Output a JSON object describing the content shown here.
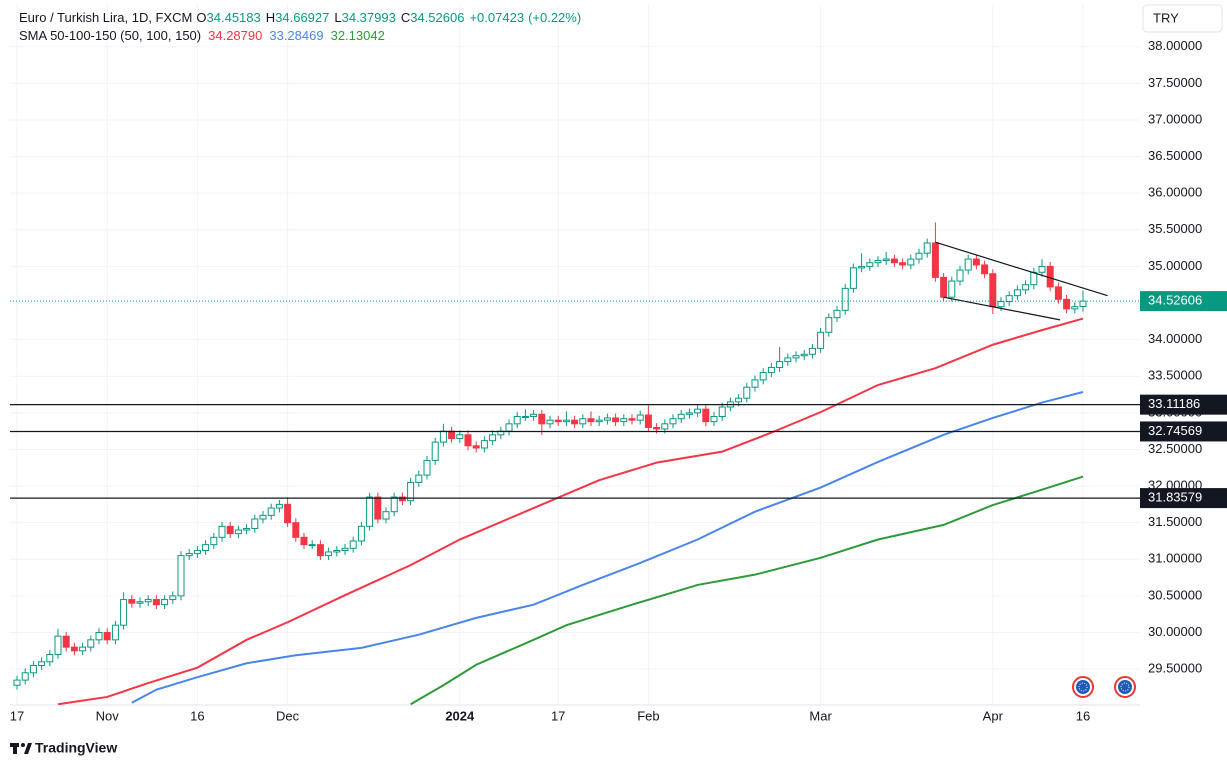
{
  "chart_data": {
    "type": "candlestick",
    "title": "Euro / Turkish Lira, 1D, FXCM",
    "currency": "TRY",
    "ohlc_labels": [
      "O",
      "H",
      "L",
      "C"
    ],
    "change": "+0.07423",
    "change_pct": "(+0.22%)",
    "watermark": "TradingView",
    "up_color": "#089981",
    "down_color": "#f23645",
    "grid": true,
    "categories": [
      "17",
      null,
      null,
      null,
      null,
      null,
      null,
      null,
      null,
      null,
      null,
      "Nov",
      null,
      null,
      null,
      null,
      null,
      null,
      null,
      null,
      null,
      null,
      "16",
      null,
      null,
      null,
      null,
      null,
      null,
      null,
      null,
      null,
      null,
      "Dec",
      null,
      null,
      null,
      null,
      null,
      null,
      null,
      null,
      null,
      null,
      null,
      null,
      null,
      null,
      null,
      null,
      null,
      null,
      null,
      null,
      "2024",
      null,
      null,
      null,
      null,
      null,
      null,
      null,
      null,
      null,
      null,
      null,
      "17",
      null,
      null,
      null,
      null,
      null,
      null,
      null,
      null,
      null,
      null,
      "Feb",
      null,
      null,
      null,
      null,
      null,
      null,
      null,
      null,
      null,
      null,
      null,
      null,
      null,
      null,
      null,
      null,
      null,
      null,
      null,
      null,
      "Mar",
      null,
      null,
      null,
      null,
      null,
      null,
      null,
      null,
      null,
      null,
      null,
      null,
      null,
      null,
      null,
      null,
      null,
      null,
      null,
      null,
      "Apr",
      null,
      null,
      null,
      null,
      null,
      null,
      null,
      null,
      null,
      null,
      "16"
    ],
    "open": [
      29.28,
      29.35,
      29.45,
      29.55,
      29.6,
      29.7,
      29.95,
      29.8,
      29.75,
      29.8,
      29.9,
      30.0,
      29.9,
      30.1,
      30.45,
      30.4,
      30.42,
      30.45,
      30.38,
      30.45,
      30.5,
      31.05,
      31.08,
      31.12,
      31.2,
      31.3,
      31.45,
      31.35,
      31.4,
      31.42,
      31.55,
      31.6,
      31.7,
      31.75,
      31.5,
      31.3,
      31.2,
      31.2,
      31.05,
      31.1,
      31.12,
      31.15,
      31.25,
      31.45,
      31.85,
      31.55,
      31.65,
      31.85,
      31.8,
      32.05,
      32.15,
      32.35,
      32.6,
      32.75,
      32.65,
      32.7,
      32.55,
      32.52,
      32.62,
      32.7,
      32.75,
      32.85,
      32.95,
      32.95,
      32.98,
      32.85,
      32.9,
      32.88,
      32.9,
      32.85,
      32.92,
      32.88,
      32.9,
      32.93,
      32.88,
      32.92,
      32.9,
      32.97,
      32.8,
      32.78,
      32.85,
      32.92,
      32.98,
      33.0,
      33.05,
      32.88,
      32.95,
      33.08,
      33.15,
      33.2,
      33.35,
      33.45,
      33.55,
      33.62,
      33.7,
      33.75,
      33.78,
      33.8,
      33.88,
      34.1,
      34.3,
      34.4,
      34.7,
      34.98,
      35.0,
      35.05,
      35.08,
      35.1,
      35.05,
      35.02,
      35.1,
      35.18,
      35.32,
      34.85,
      34.58,
      34.8,
      34.95,
      35.1,
      35.02,
      34.9,
      34.45,
      34.52,
      34.6,
      34.68,
      34.75,
      34.92,
      35.0,
      34.72,
      34.55,
      34.42,
      34.45183
    ],
    "high": [
      29.41,
      29.51,
      29.61,
      29.66,
      29.76,
      30.05,
      30.01,
      29.86,
      29.86,
      29.96,
      30.06,
      30.06,
      30.16,
      30.55,
      30.51,
      30.48,
      30.51,
      30.51,
      30.51,
      30.56,
      31.11,
      31.14,
      31.18,
      31.26,
      31.36,
      31.51,
      31.51,
      31.46,
      31.48,
      31.61,
      31.66,
      31.76,
      31.81,
      31.85,
      31.56,
      31.36,
      31.26,
      31.26,
      31.16,
      31.18,
      31.21,
      31.31,
      31.51,
      31.91,
      31.91,
      31.71,
      31.91,
      31.91,
      32.11,
      32.21,
      32.41,
      32.66,
      32.85,
      32.81,
      32.76,
      32.76,
      32.61,
      32.68,
      32.76,
      32.81,
      32.91,
      33.01,
      33.05,
      33.04,
      33.04,
      32.96,
      32.96,
      33.02,
      32.96,
      32.98,
      33.02,
      32.96,
      32.99,
      32.99,
      32.98,
      32.98,
      33.03,
      33.1,
      32.86,
      32.91,
      32.98,
      33.04,
      33.06,
      33.11,
      33.11,
      33.01,
      33.14,
      33.21,
      33.26,
      33.41,
      33.51,
      33.61,
      33.68,
      33.9,
      33.81,
      33.84,
      33.86,
      33.94,
      34.16,
      34.36,
      34.46,
      34.76,
      35.04,
      35.18,
      35.11,
      35.14,
      35.2,
      35.16,
      35.11,
      35.16,
      35.24,
      35.38,
      35.6,
      34.91,
      34.86,
      35.01,
      35.16,
      35.16,
      35.08,
      34.96,
      34.58,
      34.66,
      34.74,
      34.81,
      34.98,
      35.1,
      35.06,
      34.78,
      34.61,
      34.51,
      34.66927
    ],
    "low": [
      29.22,
      29.29,
      29.39,
      29.49,
      29.54,
      29.64,
      29.74,
      29.69,
      29.69,
      29.74,
      29.84,
      29.84,
      29.84,
      30.04,
      30.34,
      30.34,
      30.36,
      30.32,
      30.32,
      30.39,
      30.44,
      30.99,
      31.02,
      31.06,
      31.14,
      31.24,
      31.29,
      31.29,
      31.34,
      31.36,
      31.49,
      31.54,
      31.64,
      31.44,
      31.24,
      31.14,
      31.14,
      30.99,
      30.99,
      31.04,
      31.06,
      31.09,
      31.19,
      31.39,
      31.49,
      31.49,
      31.59,
      31.74,
      31.74,
      31.99,
      32.09,
      32.29,
      32.54,
      32.59,
      32.59,
      32.49,
      32.46,
      32.46,
      32.56,
      32.64,
      32.69,
      32.79,
      32.89,
      32.89,
      32.7,
      32.79,
      32.82,
      32.82,
      32.79,
      32.79,
      32.82,
      32.82,
      32.84,
      32.82,
      32.82,
      32.84,
      32.84,
      32.74,
      32.72,
      32.72,
      32.79,
      32.86,
      32.92,
      32.94,
      32.82,
      32.82,
      32.89,
      33.02,
      33.09,
      33.14,
      33.29,
      33.39,
      33.49,
      33.56,
      33.64,
      33.69,
      33.72,
      33.74,
      33.82,
      34.04,
      34.24,
      34.34,
      34.64,
      34.92,
      34.94,
      34.99,
      35.02,
      34.99,
      34.96,
      34.96,
      35.04,
      35.12,
      34.79,
      34.52,
      34.52,
      34.74,
      34.89,
      34.96,
      34.84,
      34.35,
      34.39,
      34.46,
      34.54,
      34.62,
      34.69,
      34.86,
      34.66,
      34.49,
      34.36,
      34.36,
      34.37993
    ],
    "close": [
      29.35,
      29.45,
      29.55,
      29.6,
      29.7,
      29.95,
      29.8,
      29.75,
      29.8,
      29.9,
      30.0,
      29.9,
      30.1,
      30.45,
      30.4,
      30.42,
      30.45,
      30.38,
      30.45,
      30.5,
      31.05,
      31.08,
      31.12,
      31.2,
      31.3,
      31.45,
      31.35,
      31.4,
      31.42,
      31.55,
      31.6,
      31.7,
      31.75,
      31.5,
      31.3,
      31.2,
      31.2,
      31.05,
      31.1,
      31.12,
      31.15,
      31.25,
      31.45,
      31.85,
      31.55,
      31.65,
      31.85,
      31.8,
      32.05,
      32.15,
      32.35,
      32.6,
      32.75,
      32.65,
      32.7,
      32.55,
      32.52,
      32.62,
      32.7,
      32.75,
      32.85,
      32.95,
      32.95,
      32.98,
      32.85,
      32.9,
      32.88,
      32.9,
      32.85,
      32.92,
      32.88,
      32.9,
      32.93,
      32.88,
      32.92,
      32.9,
      32.97,
      32.8,
      32.78,
      32.85,
      32.92,
      32.98,
      33.0,
      33.05,
      32.88,
      32.95,
      33.08,
      33.15,
      33.2,
      33.35,
      33.45,
      33.55,
      33.62,
      33.7,
      33.75,
      33.78,
      33.8,
      33.88,
      34.1,
      34.3,
      34.4,
      34.7,
      34.98,
      35.0,
      35.05,
      35.08,
      35.1,
      35.05,
      35.02,
      35.1,
      35.18,
      35.32,
      34.85,
      34.58,
      34.8,
      34.95,
      35.1,
      35.02,
      34.9,
      34.45,
      34.52,
      34.6,
      34.68,
      34.75,
      34.92,
      35.0,
      34.72,
      34.55,
      34.42,
      34.45,
      34.52606
    ],
    "indicator": {
      "name": "SMA 50-100-150 (50, 100, 150)",
      "series": [
        {
          "color": "#f23645",
          "value_label": "34.28790",
          "x": [
            5,
            11,
            16,
            22,
            28,
            33,
            40,
            48,
            54,
            63,
            71,
            78,
            86,
            92,
            98,
            105,
            112,
            119,
            125,
            130
          ],
          "values": [
            29.02,
            29.12,
            29.31,
            29.52,
            29.9,
            30.14,
            30.51,
            30.92,
            31.27,
            31.7,
            32.08,
            32.32,
            32.47,
            32.73,
            33.01,
            33.38,
            33.61,
            33.93,
            34.13,
            34.2879
          ]
        },
        {
          "color": "#4a86e8",
          "value_label": "33.28469",
          "x": [
            14,
            17,
            22,
            28,
            34,
            42,
            49,
            56,
            63,
            69,
            76,
            83,
            90,
            98,
            105,
            113,
            119,
            125,
            130
          ],
          "values": [
            29.04,
            29.22,
            29.39,
            29.58,
            29.69,
            29.79,
            29.97,
            30.2,
            30.38,
            30.65,
            30.95,
            31.27,
            31.65,
            31.98,
            32.33,
            32.7,
            32.93,
            33.14,
            33.28469
          ]
        },
        {
          "color": "#2e9a3a",
          "value_label": "32.13042",
          "x": [
            48,
            52,
            56,
            63,
            67,
            75,
            83,
            90,
            98,
            105,
            113,
            119,
            125,
            130
          ],
          "values": [
            29.02,
            29.28,
            29.56,
            29.9,
            30.1,
            30.38,
            30.65,
            30.79,
            31.02,
            31.27,
            31.47,
            31.74,
            31.95,
            32.13042
          ]
        }
      ]
    },
    "hlines": [
      33.11186,
      32.74569,
      31.83579
    ],
    "trendlines": [
      {
        "x": [
          112,
          133
        ],
        "y": [
          35.33,
          34.6
        ]
      },
      {
        "x": [
          113,
          127.2
        ],
        "y": [
          34.58,
          34.27
        ]
      }
    ],
    "ylim": [
      29.01,
      38.57
    ],
    "yticks": [
      {
        "value": 29.5,
        "label": "29.50000"
      },
      {
        "value": 30,
        "label": "30.00000"
      },
      {
        "value": 30.5,
        "label": "30.50000"
      },
      {
        "value": 31,
        "label": "31.00000"
      },
      {
        "value": 31.5,
        "label": "31.50000"
      },
      {
        "value": 32,
        "label": "32.00000"
      },
      {
        "value": 32.5,
        "label": "32.50000"
      },
      {
        "value": 33,
        "label": "33.00000"
      },
      {
        "value": 33.5,
        "label": "33.50000"
      },
      {
        "value": 34,
        "label": "34.00000"
      },
      {
        "value": 34.5,
        "label": "34.50000"
      },
      {
        "value": 35,
        "label": "35.00000"
      },
      {
        "value": 35.5,
        "label": "35.50000"
      },
      {
        "value": 36,
        "label": "36.00000"
      },
      {
        "value": 36.5,
        "label": "36.50000"
      },
      {
        "value": 37,
        "label": "37.00000"
      },
      {
        "value": 37.5,
        "label": "37.50000"
      },
      {
        "value": 38,
        "label": "38.00000"
      }
    ]
  }
}
